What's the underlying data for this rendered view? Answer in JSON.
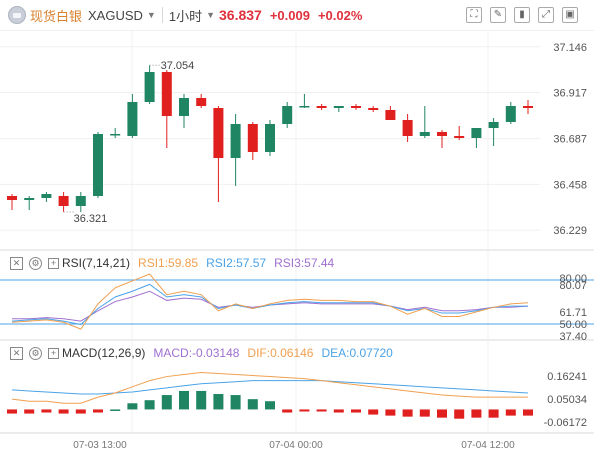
{
  "header": {
    "asset_name": "现货白银",
    "symbol": "XAGUSD",
    "period": "1小时",
    "price": "36.837",
    "change": "+0.009",
    "change_pct": "+0.02%"
  },
  "rsi_legend": {
    "title": "RSI(7,14,21)",
    "rsi1": "RSI1:59.85",
    "rsi2": "RSI2:57.57",
    "rsi3": "RSI3:57.44"
  },
  "macd_legend": {
    "title": "MACD(12,26,9)",
    "macd": "MACD:-0.03148",
    "dif": "DIF:0.06146",
    "dea": "DEA:0.07720"
  },
  "colors": {
    "up": "#1f8563",
    "down": "#e0201e",
    "rsi1": "#f0a050",
    "rsi2": "#4aa3e8",
    "rsi3": "#a070d0",
    "dif": "#f0a050",
    "dea": "#4aa3e8"
  },
  "chart_data": {
    "type": "candlestick",
    "price_axis": {
      "ylim": [
        36.17,
        37.19
      ],
      "ticks": [
        "37.146",
        "36.917",
        "36.687",
        "36.458",
        "36.229"
      ]
    },
    "time_labels": [
      "07-03 13:00",
      "07-04 00:00",
      "07-04 12:00"
    ],
    "high_annotation": "37.054",
    "low_annotation": "36.321",
    "candles": [
      {
        "o": 36.4,
        "h": 36.41,
        "l": 36.33,
        "c": 36.38
      },
      {
        "o": 36.38,
        "h": 36.4,
        "l": 36.33,
        "c": 36.39
      },
      {
        "o": 36.39,
        "h": 36.42,
        "l": 36.37,
        "c": 36.41
      },
      {
        "o": 36.4,
        "h": 36.42,
        "l": 36.32,
        "c": 36.35
      },
      {
        "o": 36.35,
        "h": 36.42,
        "l": 36.32,
        "c": 36.4
      },
      {
        "o": 36.4,
        "h": 36.72,
        "l": 36.39,
        "c": 36.71
      },
      {
        "o": 36.71,
        "h": 36.74,
        "l": 36.69,
        "c": 36.71
      },
      {
        "o": 36.7,
        "h": 36.91,
        "l": 36.69,
        "c": 36.87
      },
      {
        "o": 36.87,
        "h": 37.054,
        "l": 36.86,
        "c": 37.02
      },
      {
        "o": 37.02,
        "h": 37.03,
        "l": 36.64,
        "c": 36.8
      },
      {
        "o": 36.8,
        "h": 36.91,
        "l": 36.74,
        "c": 36.89
      },
      {
        "o": 36.89,
        "h": 36.91,
        "l": 36.84,
        "c": 36.85
      },
      {
        "o": 36.84,
        "h": 36.85,
        "l": 36.37,
        "c": 36.59
      },
      {
        "o": 36.59,
        "h": 36.81,
        "l": 36.45,
        "c": 36.76
      },
      {
        "o": 36.76,
        "h": 36.77,
        "l": 36.58,
        "c": 36.62
      },
      {
        "o": 36.62,
        "h": 36.78,
        "l": 36.6,
        "c": 36.76
      },
      {
        "o": 36.76,
        "h": 36.87,
        "l": 36.74,
        "c": 36.85
      },
      {
        "o": 36.85,
        "h": 36.91,
        "l": 36.84,
        "c": 36.85
      },
      {
        "o": 36.85,
        "h": 36.86,
        "l": 36.83,
        "c": 36.84
      },
      {
        "o": 36.84,
        "h": 36.85,
        "l": 36.82,
        "c": 36.85
      },
      {
        "o": 36.85,
        "h": 36.86,
        "l": 36.83,
        "c": 36.84
      },
      {
        "o": 36.84,
        "h": 36.85,
        "l": 36.82,
        "c": 36.83
      },
      {
        "o": 36.83,
        "h": 36.85,
        "l": 36.78,
        "c": 36.78
      },
      {
        "o": 36.78,
        "h": 36.81,
        "l": 36.67,
        "c": 36.7
      },
      {
        "o": 36.7,
        "h": 36.85,
        "l": 36.69,
        "c": 36.72
      },
      {
        "o": 36.72,
        "h": 36.73,
        "l": 36.64,
        "c": 36.7
      },
      {
        "o": 36.7,
        "h": 36.75,
        "l": 36.68,
        "c": 36.69
      },
      {
        "o": 36.69,
        "h": 36.74,
        "l": 36.64,
        "c": 36.74
      },
      {
        "o": 36.74,
        "h": 36.79,
        "l": 36.65,
        "c": 36.77
      },
      {
        "o": 36.77,
        "h": 36.87,
        "l": 36.76,
        "c": 36.85
      },
      {
        "o": 36.85,
        "h": 36.88,
        "l": 36.81,
        "c": 36.84
      }
    ],
    "rsi": {
      "axis_ticks": [
        "80.00",
        "80.07",
        "61.71",
        "50.00",
        "37.40"
      ],
      "ylim": [
        32,
        93
      ],
      "rsi1": [
        44,
        45,
        46,
        44,
        38,
        60,
        74,
        80,
        86,
        68,
        71,
        68,
        54,
        60,
        56,
        60,
        63,
        64,
        63,
        63,
        62,
        62,
        58,
        51,
        56,
        49,
        49,
        53,
        57,
        60,
        61
      ],
      "rsi2": [
        45,
        46,
        47,
        45,
        42,
        56,
        66,
        71,
        77,
        66,
        68,
        66,
        56,
        59,
        56,
        59,
        61,
        62,
        61,
        61,
        61,
        61,
        58,
        54,
        56,
        52,
        52,
        54,
        57,
        58,
        58
      ],
      "rsi3": [
        47,
        47,
        48,
        47,
        45,
        54,
        62,
        66,
        71,
        63,
        65,
        64,
        57,
        59,
        57,
        59,
        60,
        61,
        60,
        60,
        60,
        60,
        58,
        55,
        57,
        54,
        54,
        55,
        57,
        57,
        58
      ]
    },
    "macd": {
      "axis_ticks": [
        "0.16241",
        "0.05034",
        "-0.06172"
      ],
      "ylim": [
        -0.1,
        0.26
      ],
      "dif": [
        0.05,
        0.04,
        0.04,
        0.03,
        0.03,
        0.06,
        0.08,
        0.11,
        0.14,
        0.16,
        0.17,
        0.18,
        0.175,
        0.17,
        0.165,
        0.16,
        0.155,
        0.15,
        0.14,
        0.13,
        0.12,
        0.11,
        0.1,
        0.09,
        0.08,
        0.07,
        0.065,
        0.06,
        0.06,
        0.06,
        0.06
      ],
      "dea": [
        0.095,
        0.09,
        0.085,
        0.08,
        0.075,
        0.075,
        0.08,
        0.085,
        0.095,
        0.105,
        0.115,
        0.125,
        0.13,
        0.135,
        0.14,
        0.14,
        0.14,
        0.14,
        0.14,
        0.135,
        0.13,
        0.125,
        0.12,
        0.115,
        0.11,
        0.105,
        0.1,
        0.095,
        0.09,
        0.085,
        0.08
      ],
      "hist": [
        -0.02,
        -0.02,
        -0.015,
        -0.02,
        -0.02,
        -0.015,
        0.0,
        0.03,
        0.045,
        0.07,
        0.09,
        0.09,
        0.075,
        0.07,
        0.05,
        0.04,
        -0.015,
        -0.01,
        -0.01,
        -0.015,
        -0.015,
        -0.025,
        -0.03,
        -0.035,
        -0.035,
        -0.04,
        -0.045,
        -0.04,
        -0.04,
        -0.03,
        -0.03
      ]
    }
  }
}
